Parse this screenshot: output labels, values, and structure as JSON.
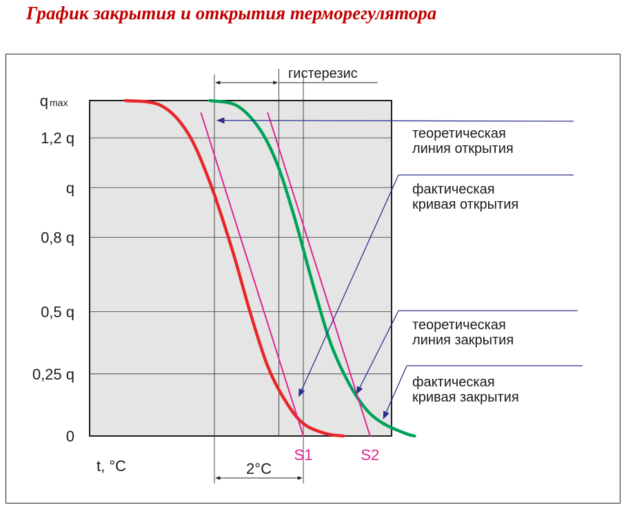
{
  "title": "График закрытия и открытия терморегулятора",
  "colors": {
    "actual_closing": "#e8262a",
    "actual_opening": "#00a25a",
    "theoretical": "#e0238f",
    "annotation": "#2b2f8f",
    "plot_bg": "#e5e5e5",
    "title": "#c00000"
  },
  "chart_data": {
    "type": "line",
    "xlabel": "t, °C",
    "ylabel": "",
    "y_ticks": [
      {
        "value": 1.35,
        "label": "q",
        "sub": "max"
      },
      {
        "value": 1.2,
        "label": "1,2 q"
      },
      {
        "value": 1.0,
        "label": "q"
      },
      {
        "value": 0.8,
        "label": "0,8 q"
      },
      {
        "value": 0.5,
        "label": "0,5 q"
      },
      {
        "value": 0.25,
        "label": "0,25 q"
      },
      {
        "value": 0,
        "label": "0"
      }
    ],
    "ylim": [
      0,
      1.35
    ],
    "xlim": [
      -6.2,
      5.8
    ],
    "x_markers": [
      {
        "label": "S1",
        "x": 0
      },
      {
        "label": "S2",
        "x": 1.5
      }
    ],
    "dimension_2c": {
      "label": "2°C",
      "from": -2,
      "to": 0
    },
    "hysteresis": {
      "label": "гистерезис",
      "from": -2,
      "to": -0.55
    },
    "series": [
      {
        "key": "actual_closing",
        "x": [
          -4.0,
          -3.2,
          -2.6,
          -2.1,
          -1.6,
          -1.2,
          -0.8,
          -0.4,
          0.0,
          0.5,
          0.9
        ],
        "y": [
          1.35,
          1.33,
          1.22,
          1.02,
          0.75,
          0.5,
          0.28,
          0.14,
          0.05,
          0.01,
          0.0
        ]
      },
      {
        "key": "actual_opening",
        "x": [
          -2.1,
          -1.5,
          -1.0,
          -0.6,
          -0.2,
          0.2,
          0.6,
          1.0,
          1.4,
          1.8,
          2.3,
          2.5
        ],
        "y": [
          1.35,
          1.33,
          1.24,
          1.1,
          0.88,
          0.62,
          0.38,
          0.22,
          0.11,
          0.05,
          0.01,
          0.0
        ]
      },
      {
        "key": "theoretical_opening",
        "x": [
          -2.3,
          0.0
        ],
        "y": [
          1.3,
          0.0
        ]
      },
      {
        "key": "theoretical_closing",
        "x": [
          -0.8,
          1.5
        ],
        "y": [
          1.3,
          0.0
        ]
      }
    ],
    "annotations": [
      {
        "lines": [
          "теоретическая",
          "линия открытия"
        ],
        "target_x": -2.0,
        "target_y": 1.27
      },
      {
        "lines": [
          "фактическая",
          "кривая открытия"
        ],
        "target_x": -0.1,
        "target_y": 0.16
      },
      {
        "lines": [
          "теоретическая",
          "линия закрытия"
        ],
        "target_x": 1.2,
        "target_y": 0.17
      },
      {
        "lines": [
          "фактическая",
          "кривая закрытия"
        ],
        "target_x": 1.8,
        "target_y": 0.07
      }
    ]
  }
}
